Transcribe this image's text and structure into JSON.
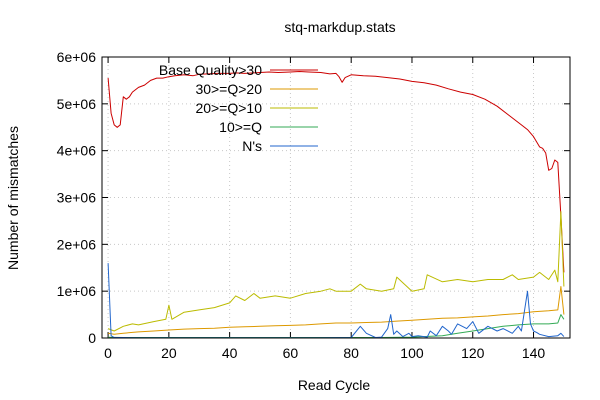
{
  "chart_data": {
    "type": "line",
    "title": "stq-markdup.stats",
    "xlabel": "Read Cycle",
    "ylabel": "Number of mismatches",
    "xlim": [
      -2,
      152
    ],
    "ylim": [
      0,
      6000000
    ],
    "x_ticks": [
      0,
      20,
      40,
      60,
      80,
      100,
      120,
      140
    ],
    "x_tick_labels": [
      "0",
      "20",
      "40",
      "60",
      "80",
      "100",
      "120",
      "140"
    ],
    "y_ticks": [
      0,
      1000000,
      2000000,
      3000000,
      4000000,
      5000000,
      6000000
    ],
    "y_tick_labels": [
      "0",
      "1e+06",
      "2e+06",
      "3e+06",
      "4e+06",
      "5e+06",
      "6e+06"
    ],
    "grid": true,
    "legend_position": "top-left",
    "series": [
      {
        "name": "Base Quality>30",
        "color": "#cc0000",
        "x": [
          0,
          1,
          2,
          3,
          4,
          5,
          6,
          7,
          8,
          10,
          12,
          14,
          16,
          18,
          20,
          22,
          25,
          28,
          30,
          33,
          36,
          40,
          42,
          45,
          48,
          50,
          53,
          56,
          60,
          63,
          66,
          70,
          73,
          75,
          76,
          77,
          78,
          80,
          84,
          88,
          92,
          96,
          100,
          104,
          108,
          112,
          116,
          120,
          124,
          128,
          132,
          136,
          138,
          140,
          142,
          143,
          144,
          145,
          146,
          147,
          148,
          149,
          150
        ],
        "y": [
          5550000,
          4800000,
          4550000,
          4500000,
          4550000,
          5150000,
          5100000,
          5150000,
          5250000,
          5350000,
          5400000,
          5500000,
          5550000,
          5550000,
          5580000,
          5600000,
          5620000,
          5600000,
          5630000,
          5640000,
          5650000,
          5650000,
          5660000,
          5650000,
          5660000,
          5670000,
          5680000,
          5670000,
          5680000,
          5690000,
          5680000,
          5670000,
          5640000,
          5650000,
          5580000,
          5460000,
          5560000,
          5620000,
          5600000,
          5590000,
          5560000,
          5530000,
          5480000,
          5450000,
          5400000,
          5320000,
          5250000,
          5200000,
          5100000,
          4950000,
          4750000,
          4550000,
          4450000,
          4300000,
          4080000,
          4050000,
          3950000,
          3580000,
          3620000,
          3800000,
          3750000,
          2600000,
          1400000
        ]
      },
      {
        "name": "30>=Q>20",
        "color": "#dd9900",
        "x": [
          0,
          2,
          5,
          8,
          10,
          15,
          20,
          25,
          30,
          35,
          40,
          45,
          50,
          55,
          60,
          65,
          70,
          75,
          80,
          85,
          90,
          95,
          100,
          105,
          110,
          115,
          120,
          125,
          130,
          135,
          140,
          145,
          148,
          149,
          150
        ],
        "y": [
          100000,
          80000,
          100000,
          120000,
          130000,
          150000,
          170000,
          190000,
          200000,
          210000,
          230000,
          240000,
          250000,
          260000,
          270000,
          280000,
          300000,
          320000,
          320000,
          330000,
          340000,
          360000,
          380000,
          400000,
          420000,
          430000,
          450000,
          470000,
          500000,
          520000,
          560000,
          580000,
          600000,
          1100000,
          500000
        ]
      },
      {
        "name": "20>=Q>10",
        "color": "#bbbb00",
        "x": [
          0,
          2,
          5,
          8,
          10,
          15,
          19,
          20,
          21,
          25,
          30,
          35,
          40,
          42,
          45,
          48,
          50,
          55,
          60,
          65,
          70,
          73,
          75,
          80,
          83,
          85,
          90,
          94,
          95,
          100,
          104,
          105,
          110,
          115,
          120,
          125,
          130,
          133,
          135,
          140,
          142,
          145,
          147,
          148,
          149,
          150
        ],
        "y": [
          200000,
          150000,
          250000,
          300000,
          280000,
          350000,
          400000,
          700000,
          400000,
          550000,
          600000,
          650000,
          750000,
          900000,
          800000,
          950000,
          850000,
          900000,
          850000,
          950000,
          1000000,
          1050000,
          1000000,
          1000000,
          1150000,
          1050000,
          1000000,
          1050000,
          1300000,
          1000000,
          1050000,
          1350000,
          1200000,
          1250000,
          1200000,
          1250000,
          1250000,
          1350000,
          1250000,
          1300000,
          1400000,
          1250000,
          1450000,
          1200000,
          2700000,
          1100000
        ]
      },
      {
        "name": "10>=Q",
        "color": "#33aa55",
        "x": [
          0,
          5,
          10,
          20,
          30,
          40,
          50,
          60,
          70,
          80,
          90,
          100,
          110,
          115,
          120,
          125,
          130,
          135,
          140,
          145,
          148,
          149,
          150
        ],
        "y": [
          15000,
          10000,
          10000,
          10000,
          10000,
          10000,
          10000,
          10000,
          10000,
          10000,
          10000,
          20000,
          50000,
          100000,
          150000,
          200000,
          250000,
          280000,
          300000,
          300000,
          320000,
          500000,
          400000
        ]
      },
      {
        "name": "N's",
        "color": "#2266cc",
        "x": [
          0,
          1,
          2,
          5,
          10,
          20,
          30,
          40,
          50,
          60,
          70,
          80,
          83,
          85,
          88,
          90,
          92,
          93,
          94,
          95,
          97,
          99,
          100,
          102,
          105,
          106,
          108,
          110,
          112,
          113,
          115,
          118,
          120,
          122,
          125,
          128,
          130,
          133,
          135,
          136,
          138,
          139,
          140,
          141,
          142,
          145,
          148,
          149,
          150
        ],
        "y": [
          1600000,
          50000,
          10000,
          10000,
          5000,
          5000,
          5000,
          5000,
          5000,
          5000,
          5000,
          10000,
          250000,
          100000,
          10000,
          20000,
          200000,
          500000,
          80000,
          150000,
          30000,
          100000,
          30000,
          50000,
          20000,
          150000,
          50000,
          250000,
          150000,
          80000,
          300000,
          200000,
          350000,
          100000,
          250000,
          150000,
          200000,
          100000,
          250000,
          150000,
          1000000,
          300000,
          150000,
          120000,
          80000,
          30000,
          50000,
          100000,
          30000
        ]
      }
    ]
  }
}
